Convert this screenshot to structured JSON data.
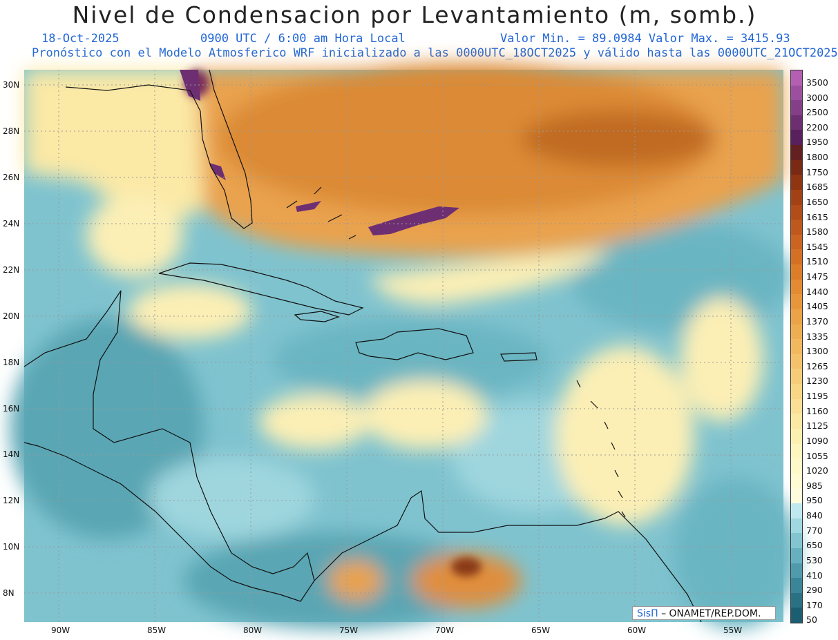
{
  "header": {
    "title": "Nivel de Condensacion por Levantamiento (m, somb.)",
    "date": "18-Oct-2025",
    "time": "0900 UTC / 6:00 am Hora Local",
    "minmax": "Valor Min. = 89.0984  Valor Max. = 3415.93",
    "forecast": "Pronóstico con el Modelo Atmosferico WRF inicializado a las 0000UTC_18OCT2025 y válido hasta las  0000UTC_21OCT2025"
  },
  "map": {
    "lat_labels": [
      "30N",
      "28N",
      "26N",
      "24N",
      "22N",
      "20N",
      "18N",
      "16N",
      "14N",
      "12N",
      "10N",
      "8N"
    ],
    "lon_labels": [
      "90W",
      "85W",
      "80W",
      "75W",
      "70W",
      "65W",
      "60W",
      "55W"
    ]
  },
  "colorbar": {
    "levels": [
      "3500",
      "3000",
      "2500",
      "2200",
      "1950",
      "1800",
      "1750",
      "1685",
      "1650",
      "1615",
      "1580",
      "1545",
      "1510",
      "1475",
      "1440",
      "1405",
      "1370",
      "1335",
      "1300",
      "1265",
      "1230",
      "1195",
      "1160",
      "1125",
      "1090",
      "1055",
      "1020",
      "985",
      "950",
      "840",
      "770",
      "650",
      "530",
      "410",
      "290",
      "170",
      "50"
    ],
    "colors": [
      "#b45fb2",
      "#9c4f9e",
      "#843f88",
      "#6e2f72",
      "#58205c",
      "#641f20",
      "#7a2a14",
      "#8f3512",
      "#a34114",
      "#b24c18",
      "#bf581c",
      "#ca6420",
      "#d47024",
      "#dc7d2a",
      "#e38a32",
      "#e8963c",
      "#eca246",
      "#efad52",
      "#f2b85e",
      "#f4c26a",
      "#f6cc78",
      "#f8d686",
      "#fadf94",
      "#fbe8a2",
      "#fcf0b0",
      "#fdf6be",
      "#fef9c8",
      "#fffbd2",
      "#fffcdc",
      "#bfe9ee",
      "#9fd8e0",
      "#82c5d1",
      "#67b0bf",
      "#4f9aab",
      "#3a8597",
      "#2a7184",
      "#1c5e71"
    ]
  },
  "credit": {
    "brand": "SisΠ",
    "text": "– ONAMET/REP.DOM."
  }
}
